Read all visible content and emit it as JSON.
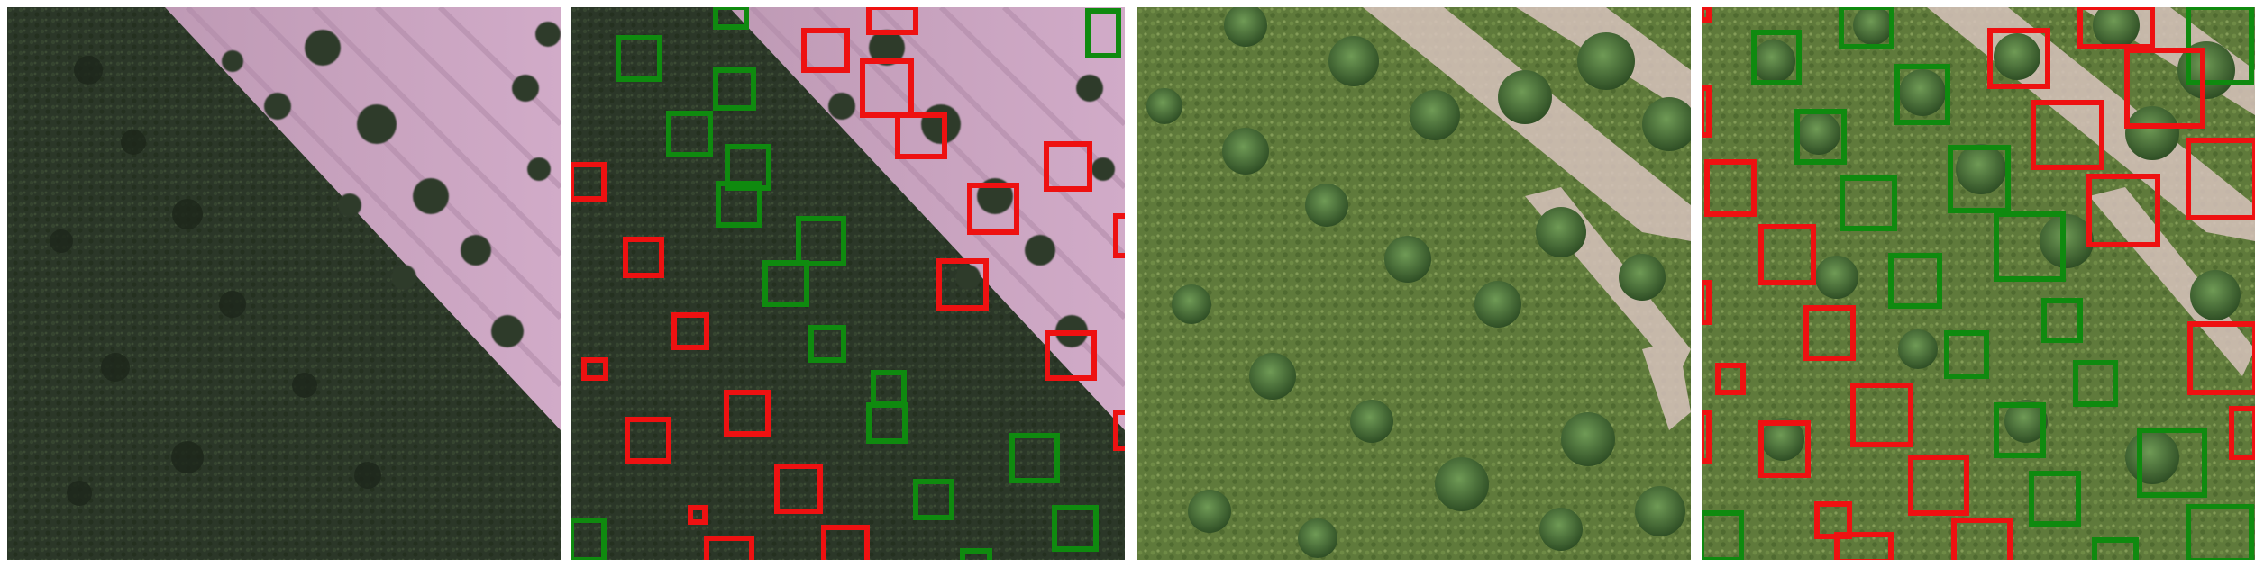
{
  "figure": {
    "panels": [
      {
        "id": "pink-scene-original",
        "scene": "pink",
        "annotated": false
      },
      {
        "id": "pink-scene-detections",
        "scene": "pink",
        "annotated": true,
        "box_colors": {
          "green": "#0f8a0f",
          "red": "#ee1111"
        }
      },
      {
        "id": "green-scene-original",
        "scene": "green",
        "annotated": false
      },
      {
        "id": "green-scene-detections",
        "scene": "green",
        "annotated": true,
        "box_colors": {
          "green": "#0f8a0f",
          "red": "#ee1111"
        }
      }
    ],
    "palette": {
      "pink_ground": "#c79fbf",
      "pink_vegetation": "#2d3a2a",
      "green_ground": "#5e7a3a",
      "green_tree": "#3f6630",
      "bare_soil": "#dcc7c0"
    }
  }
}
